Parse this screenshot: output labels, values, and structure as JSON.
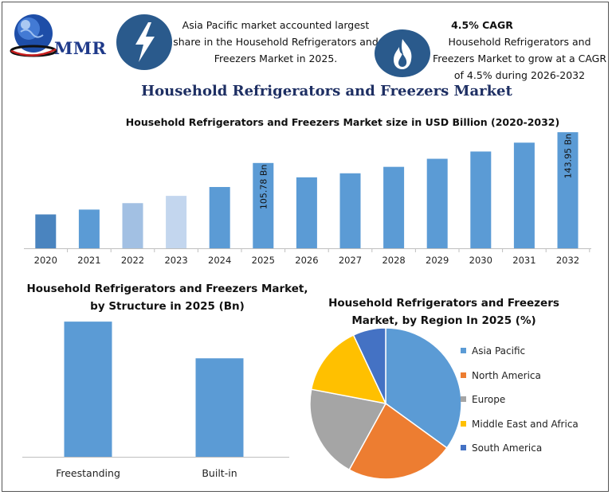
{
  "header": {
    "logo_text": "MMR",
    "highlight_text": "Asia Pacific market accounted largest share in the Household Refrigerators and Freezers Market in 2025.",
    "cagr_title": "4.5% CAGR",
    "cagr_text": "Household Refrigerators and Freezers Market to grow at a CAGR of 4.5% during 2026-2032",
    "icons": [
      "globe-logo-icon",
      "lightning-icon",
      "flame-icon"
    ]
  },
  "main_title": "Household Refrigerators and Freezers Market",
  "colors": {
    "bar_blue": "#5b9bd5",
    "bar_dark": "#4a84bf",
    "bar_light": "#a2c0e3",
    "bar_lighter": "#c3d6ee",
    "icon_bg": "#2a5a8c",
    "title_navy": "#1e2f63"
  },
  "chart_data": [
    {
      "type": "bar",
      "title": "Household Refrigerators and Freezers Market size in USD Billion (2020-2032)",
      "categories": [
        "2020",
        "2021",
        "2022",
        "2023",
        "2024",
        "2025",
        "2026",
        "2027",
        "2028",
        "2029",
        "2030",
        "2031",
        "2032"
      ],
      "values": [
        42,
        48,
        56,
        65,
        76,
        105.78,
        88,
        93,
        101,
        111,
        120,
        131,
        143.95
      ],
      "data_labels": {
        "2025": "105.78 Bn",
        "2032": "143.95 Bn"
      },
      "ylim": [
        0,
        150
      ],
      "grid": false
    },
    {
      "type": "bar",
      "title": "Household Refrigerators and Freezers Market, by Structure in 2025 (Bn)",
      "categories": [
        "Freestanding",
        "Built-in"
      ],
      "values": [
        70,
        51
      ],
      "ylim": [
        0,
        75
      ],
      "grid": false
    },
    {
      "type": "pie",
      "title": "Household Refrigerators and Freezers Market, by Region In 2025 (%)",
      "labels": [
        "Asia Pacific",
        "North America",
        "Europe",
        "Middle East and Africa",
        "South America"
      ],
      "values": [
        35,
        23,
        20,
        15,
        7
      ],
      "colors": [
        "#5b9bd5",
        "#ed7d31",
        "#a5a5a5",
        "#ffc000",
        "#4472c4"
      ],
      "legend_position": "right"
    }
  ]
}
